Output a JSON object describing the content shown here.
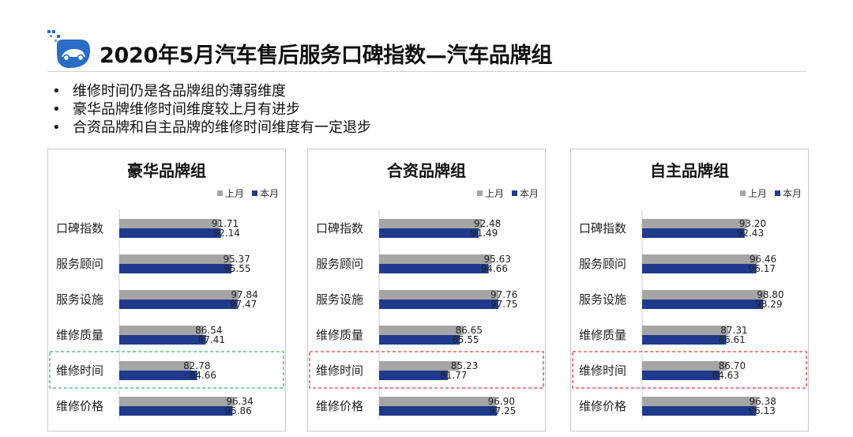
{
  "page": {
    "title": "2020年5月汽车售后服务口碑指数—汽车品牌组",
    "bullets": [
      "维修时间仍是各品牌组的薄弱维度",
      "豪华品牌维修时间维度较上月有进步",
      "合资品牌和自主品牌的维修时间维度有一定退步"
    ]
  },
  "chart_data": [
    {
      "type": "bar",
      "orientation": "horizontal",
      "title": "豪华品牌组",
      "categories": [
        "口碑指数",
        "服务顾问",
        "服务设施",
        "维修质量",
        "维修时间",
        "维修价格"
      ],
      "series": [
        {
          "name": "上月",
          "color": "#a5a5a5",
          "values": [
            91.71,
            95.37,
            97.84,
            86.54,
            82.78,
            96.34
          ]
        },
        {
          "name": "本月",
          "color": "#1f3a8c",
          "values": [
            92.14,
            95.55,
            97.47,
            87.41,
            84.66,
            95.86
          ]
        }
      ],
      "legend": "top-right",
      "highlight": {
        "category": "维修时间",
        "color": "#3cb371"
      }
    },
    {
      "type": "bar",
      "orientation": "horizontal",
      "title": "合资品牌组",
      "categories": [
        "口碑指数",
        "服务顾问",
        "服务设施",
        "维修质量",
        "维修时间",
        "维修价格"
      ],
      "series": [
        {
          "name": "上月",
          "color": "#a5a5a5",
          "values": [
            92.48,
            95.63,
            97.76,
            86.65,
            85.23,
            96.9
          ]
        },
        {
          "name": "本月",
          "color": "#1f3a8c",
          "values": [
            91.49,
            94.66,
            97.75,
            85.55,
            81.77,
            97.25
          ]
        }
      ],
      "legend": "top-right",
      "highlight": {
        "category": "维修时间",
        "color": "#e03c3c"
      }
    },
    {
      "type": "bar",
      "orientation": "horizontal",
      "title": "自主品牌组",
      "categories": [
        "口碑指数",
        "服务顾问",
        "服务设施",
        "维修质量",
        "维修时间",
        "维修价格"
      ],
      "series": [
        {
          "name": "上月",
          "color": "#a5a5a5",
          "values": [
            93.2,
            96.46,
            98.8,
            87.31,
            86.7,
            96.38
          ]
        },
        {
          "name": "本月",
          "color": "#1f3a8c",
          "values": [
            92.43,
            96.17,
            98.29,
            86.61,
            84.63,
            96.13
          ]
        }
      ],
      "legend": "top-right",
      "highlight": {
        "category": "维修时间",
        "color": "#e03c3c"
      }
    }
  ]
}
